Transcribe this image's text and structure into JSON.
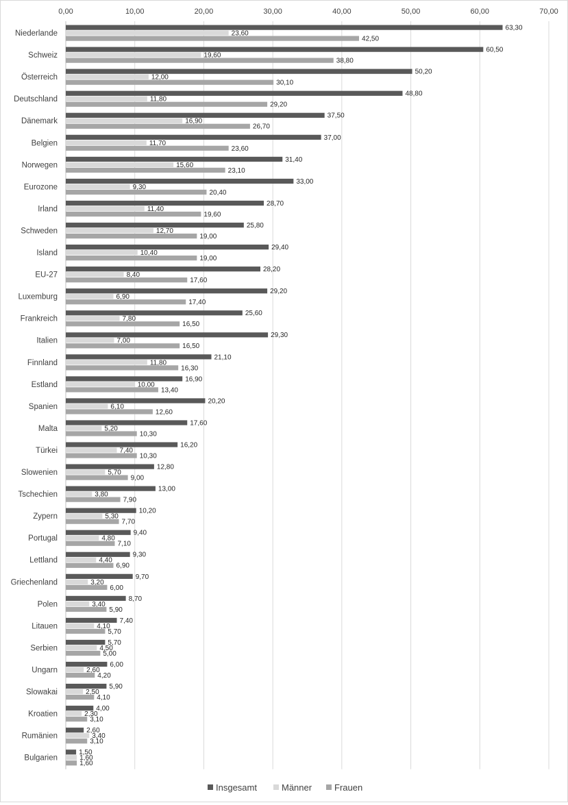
{
  "chart_data": {
    "type": "bar",
    "orientation": "horizontal",
    "xlim": [
      0,
      70
    ],
    "x_ticks": [
      "0,00",
      "10,00",
      "20,00",
      "30,00",
      "40,00",
      "50,00",
      "60,00",
      "70,00"
    ],
    "grid": true,
    "legend_position": "bottom",
    "categories": [
      "Niederlande",
      "Schweiz",
      "Österreich",
      "Deutschland",
      "Dänemark",
      "Belgien",
      "Norwegen",
      "Eurozone",
      "Irland",
      "Schweden",
      "Island",
      "EU-27",
      "Luxemburg",
      "Frankreich",
      "Italien",
      "Finnland",
      "Estland",
      "Spanien",
      "Malta",
      "Türkei",
      "Slowenien",
      "Tschechien",
      "Zypern",
      "Portugal",
      "Lettland",
      "Griechenland",
      "Polen",
      "Litauen",
      "Serbien",
      "Ungarn",
      "Slowakai",
      "Kroatien",
      "Rumänien",
      "Bulgarien"
    ],
    "series": [
      {
        "name": "Insgesamt",
        "color": "#595959",
        "values": [
          63.3,
          60.5,
          50.2,
          48.8,
          37.5,
          37.0,
          31.4,
          33.0,
          28.7,
          25.8,
          29.4,
          28.2,
          29.2,
          25.6,
          29.3,
          21.1,
          16.9,
          20.2,
          17.6,
          16.2,
          12.8,
          13.0,
          10.2,
          9.4,
          9.3,
          9.7,
          8.7,
          7.4,
          5.7,
          6.0,
          5.9,
          4.0,
          2.6,
          1.5
        ]
      },
      {
        "name": "Männer",
        "color": "#d9d9d9",
        "values": [
          23.6,
          19.6,
          12.0,
          11.8,
          16.9,
          11.7,
          15.6,
          9.3,
          11.4,
          12.7,
          10.4,
          8.4,
          6.9,
          7.8,
          7.0,
          11.8,
          10.0,
          6.1,
          5.2,
          7.4,
          5.7,
          3.8,
          5.3,
          4.8,
          4.4,
          3.2,
          3.4,
          4.1,
          4.5,
          2.6,
          2.5,
          2.3,
          3.4,
          1.6
        ]
      },
      {
        "name": "Frauen",
        "color": "#a6a6a6",
        "values": [
          42.5,
          38.8,
          30.1,
          29.2,
          26.7,
          23.6,
          23.1,
          20.4,
          19.6,
          19.0,
          19.0,
          17.6,
          17.4,
          16.5,
          16.5,
          16.3,
          13.4,
          12.6,
          10.3,
          10.3,
          9.0,
          7.9,
          7.7,
          7.1,
          6.9,
          6.0,
          5.9,
          5.7,
          5.0,
          4.2,
          4.1,
          3.1,
          3.1,
          1.6
        ]
      }
    ]
  }
}
